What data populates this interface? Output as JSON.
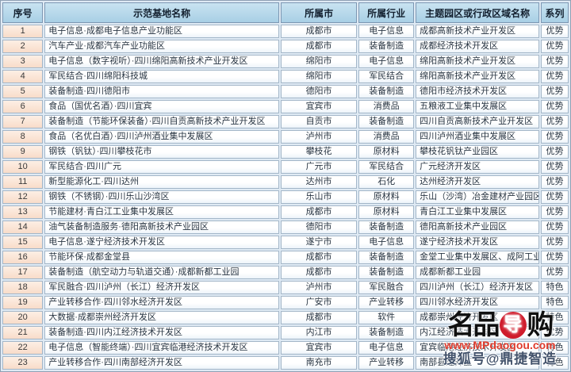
{
  "table": {
    "columns": [
      {
        "key": "index",
        "label": "序号"
      },
      {
        "key": "name",
        "label": "示范基地名称"
      },
      {
        "key": "city",
        "label": "所属市"
      },
      {
        "key": "industry",
        "label": "所属行业"
      },
      {
        "key": "park",
        "label": "主题园区或行政区域名称"
      },
      {
        "key": "series",
        "label": "系列"
      }
    ],
    "rows": [
      {
        "index": "1",
        "name": "电子信息·成都电子信息产业功能区",
        "city": "成都市",
        "industry": "电子信息",
        "park": "成都高新技术产业开发区",
        "series": "优势"
      },
      {
        "index": "2",
        "name": "汽车产业·成都汽车产业功能区",
        "city": "成都市",
        "industry": "装备制造",
        "park": "成都经济技术开发区",
        "series": "优势"
      },
      {
        "index": "3",
        "name": "电子信息（数字视听）·四川绵阳高新技术产业开发区",
        "city": "绵阳市",
        "industry": "电子信息",
        "park": "绵阳高新技术产业开发区",
        "series": "优势"
      },
      {
        "index": "4",
        "name": "军民结合·四川绵阳科技城",
        "city": "绵阳市",
        "industry": "军民结合",
        "park": "绵阳高新技术产业开发区",
        "series": "优势"
      },
      {
        "index": "5",
        "name": "装备制造·四川德阳市",
        "city": "德阳市",
        "industry": "装备制造",
        "park": "德阳市经济技术开发区",
        "series": "优势"
      },
      {
        "index": "6",
        "name": "食品（国优名酒）·四川宜宾",
        "city": "宜宾市",
        "industry": "消费品",
        "park": "五粮液工业集中发展区",
        "series": "优势"
      },
      {
        "index": "7",
        "name": "装备制造（节能环保装备）·四川自贡高新技术产业开发区",
        "city": "自贡市",
        "industry": "装备制造",
        "park": "四川自贡高新技术产业开发区",
        "series": "优势"
      },
      {
        "index": "8",
        "name": "食品（名优白酒）·四川泸州酒业集中发展区",
        "city": "泸州市",
        "industry": "消费品",
        "park": "四川泸州酒业集中发展区",
        "series": "优势"
      },
      {
        "index": "9",
        "name": "钢铁（钒钛）·四川攀枝花市",
        "city": "攀枝花",
        "industry": "原材料",
        "park": "攀枝花钒钛产业园区",
        "series": "优势"
      },
      {
        "index": "10",
        "name": "军民结合·四川广元",
        "city": "广元市",
        "industry": "军民结合",
        "park": "广元经济开发区",
        "series": "优势"
      },
      {
        "index": "11",
        "name": "新型能源化工·四川达州",
        "city": "达州市",
        "industry": "石化",
        "park": "达州经济开发区",
        "series": "优势"
      },
      {
        "index": "12",
        "name": "钢铁（不锈钢）·四川乐山沙湾区",
        "city": "乐山市",
        "industry": "原材料",
        "park": "乐山（沙湾）冶金建材产业园区",
        "series": "优势"
      },
      {
        "index": "13",
        "name": "节能建材·青白江工业集中发展区",
        "city": "成都市",
        "industry": "原材料",
        "park": "青白江工业集中发展区",
        "series": "优势"
      },
      {
        "index": "14",
        "name": "油气装备制造服务·德阳高新技术产业园区",
        "city": "德阳市",
        "industry": "装备制造",
        "park": "德阳高新技术产业园区",
        "series": "优势"
      },
      {
        "index": "15",
        "name": "电子信息·遂宁经济技术开发区",
        "city": "遂宁市",
        "industry": "电子信息",
        "park": "遂宁经济技术开发区",
        "series": "优势"
      },
      {
        "index": "16",
        "name": "节能环保·成都金堂县",
        "city": "成都市",
        "industry": "装备制造",
        "park": "金堂工业集中发展区、成阿工业园区",
        "series": "优势"
      },
      {
        "index": "17",
        "name": "装备制造（航空动力与轨道交通）·成都新都工业园",
        "city": "成都市",
        "industry": "装备制造",
        "park": "成都新都工业园",
        "series": "优势"
      },
      {
        "index": "18",
        "name": "军民融合·四川泸州（长江）经济开发区",
        "city": "泸州市",
        "industry": "军民融合",
        "park": "四川泸州（长江）经济开发区",
        "series": "特色"
      },
      {
        "index": "19",
        "name": "产业转移合作·四川邻水经济开发区",
        "city": "广安市",
        "industry": "产业转移",
        "park": "四川邻水经济开发区",
        "series": "特色"
      },
      {
        "index": "20",
        "name": "大数据·成都崇州经济开发区",
        "city": "成都市",
        "industry": "软件",
        "park": "成都崇州经济开发区",
        "series": "特色"
      },
      {
        "index": "21",
        "name": "装备制造·四川内江经济技术开发区",
        "city": "内江市",
        "industry": "装备制造",
        "park": "内江经济技术开发区",
        "series": "优势"
      },
      {
        "index": "22",
        "name": "电子信息（智能终端）·四川宜宾临港经济技术开发区",
        "city": "宜宾市",
        "industry": "电子信息",
        "park": "宜宾临港经济技术开发区",
        "series": "特色"
      },
      {
        "index": "23",
        "name": "产业转移合作·四川南部经济开发区",
        "city": "南充市",
        "industry": "产业转移",
        "park": "南部县经开区",
        "series": "特色"
      }
    ]
  },
  "watermark": {
    "logo_left": "名品",
    "logo_circle_char": "导",
    "logo_right": "购",
    "url": "www.MPdaogou.com",
    "account": "搜狐号@鼎捷智造"
  },
  "colors": {
    "header_bg": "#a8cfe5",
    "index_cell_bg": "#f8dcc9",
    "cell_bg": "#ffffff",
    "grid_border": "#a3b6c8",
    "logo_red": "#cf1b2b",
    "url_red": "#e03c2d"
  }
}
